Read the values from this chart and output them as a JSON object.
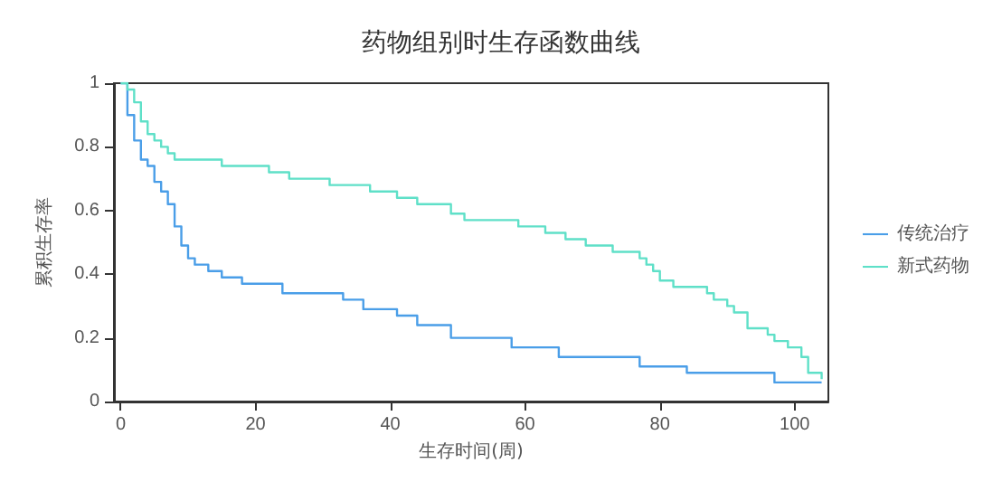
{
  "chart_data": {
    "type": "step",
    "title": "药物组别时生存函数曲线",
    "xlabel": "生存时间(周)",
    "ylabel": "累积生存率",
    "xlim": [
      -1,
      105
    ],
    "xticks": [
      0,
      20,
      40,
      60,
      80,
      100
    ],
    "ylim": [
      0,
      1
    ],
    "yticks": [
      0,
      0.2,
      0.4,
      0.6,
      0.8,
      1
    ],
    "grid": false,
    "legend": "right",
    "marker": "none",
    "line_style": "solid",
    "series": [
      {
        "name": "传统治疗",
        "color": "#4a9ee8",
        "x": [
          0,
          1,
          2,
          3,
          4,
          5,
          6,
          7,
          8,
          9,
          10,
          11,
          13,
          15,
          18,
          24,
          33,
          36,
          41,
          44,
          49,
          58,
          65,
          77,
          84,
          97,
          104
        ],
        "values": [
          1,
          0.9,
          0.82,
          0.76,
          0.74,
          0.69,
          0.66,
          0.62,
          0.55,
          0.49,
          0.45,
          0.43,
          0.41,
          0.39,
          0.37,
          0.34,
          0.32,
          0.29,
          0.27,
          0.24,
          0.2,
          0.17,
          0.14,
          0.11,
          0.09,
          0.06,
          0.06
        ]
      },
      {
        "name": "新式药物",
        "color": "#5fe0c8",
        "x": [
          0,
          1,
          2,
          3,
          4,
          5,
          6,
          7,
          8,
          15,
          22,
          25,
          31,
          37,
          41,
          44,
          49,
          51,
          59,
          63,
          66,
          69,
          73,
          77,
          78,
          79,
          80,
          82,
          87,
          88,
          90,
          91,
          93,
          96,
          97,
          99,
          101,
          102,
          104
        ],
        "values": [
          1,
          0.98,
          0.94,
          0.88,
          0.84,
          0.82,
          0.8,
          0.78,
          0.76,
          0.74,
          0.72,
          0.7,
          0.68,
          0.66,
          0.64,
          0.62,
          0.59,
          0.57,
          0.55,
          0.53,
          0.51,
          0.49,
          0.47,
          0.45,
          0.43,
          0.41,
          0.38,
          0.36,
          0.34,
          0.32,
          0.3,
          0.28,
          0.23,
          0.21,
          0.19,
          0.17,
          0.14,
          0.09,
          0.07
        ]
      }
    ]
  }
}
